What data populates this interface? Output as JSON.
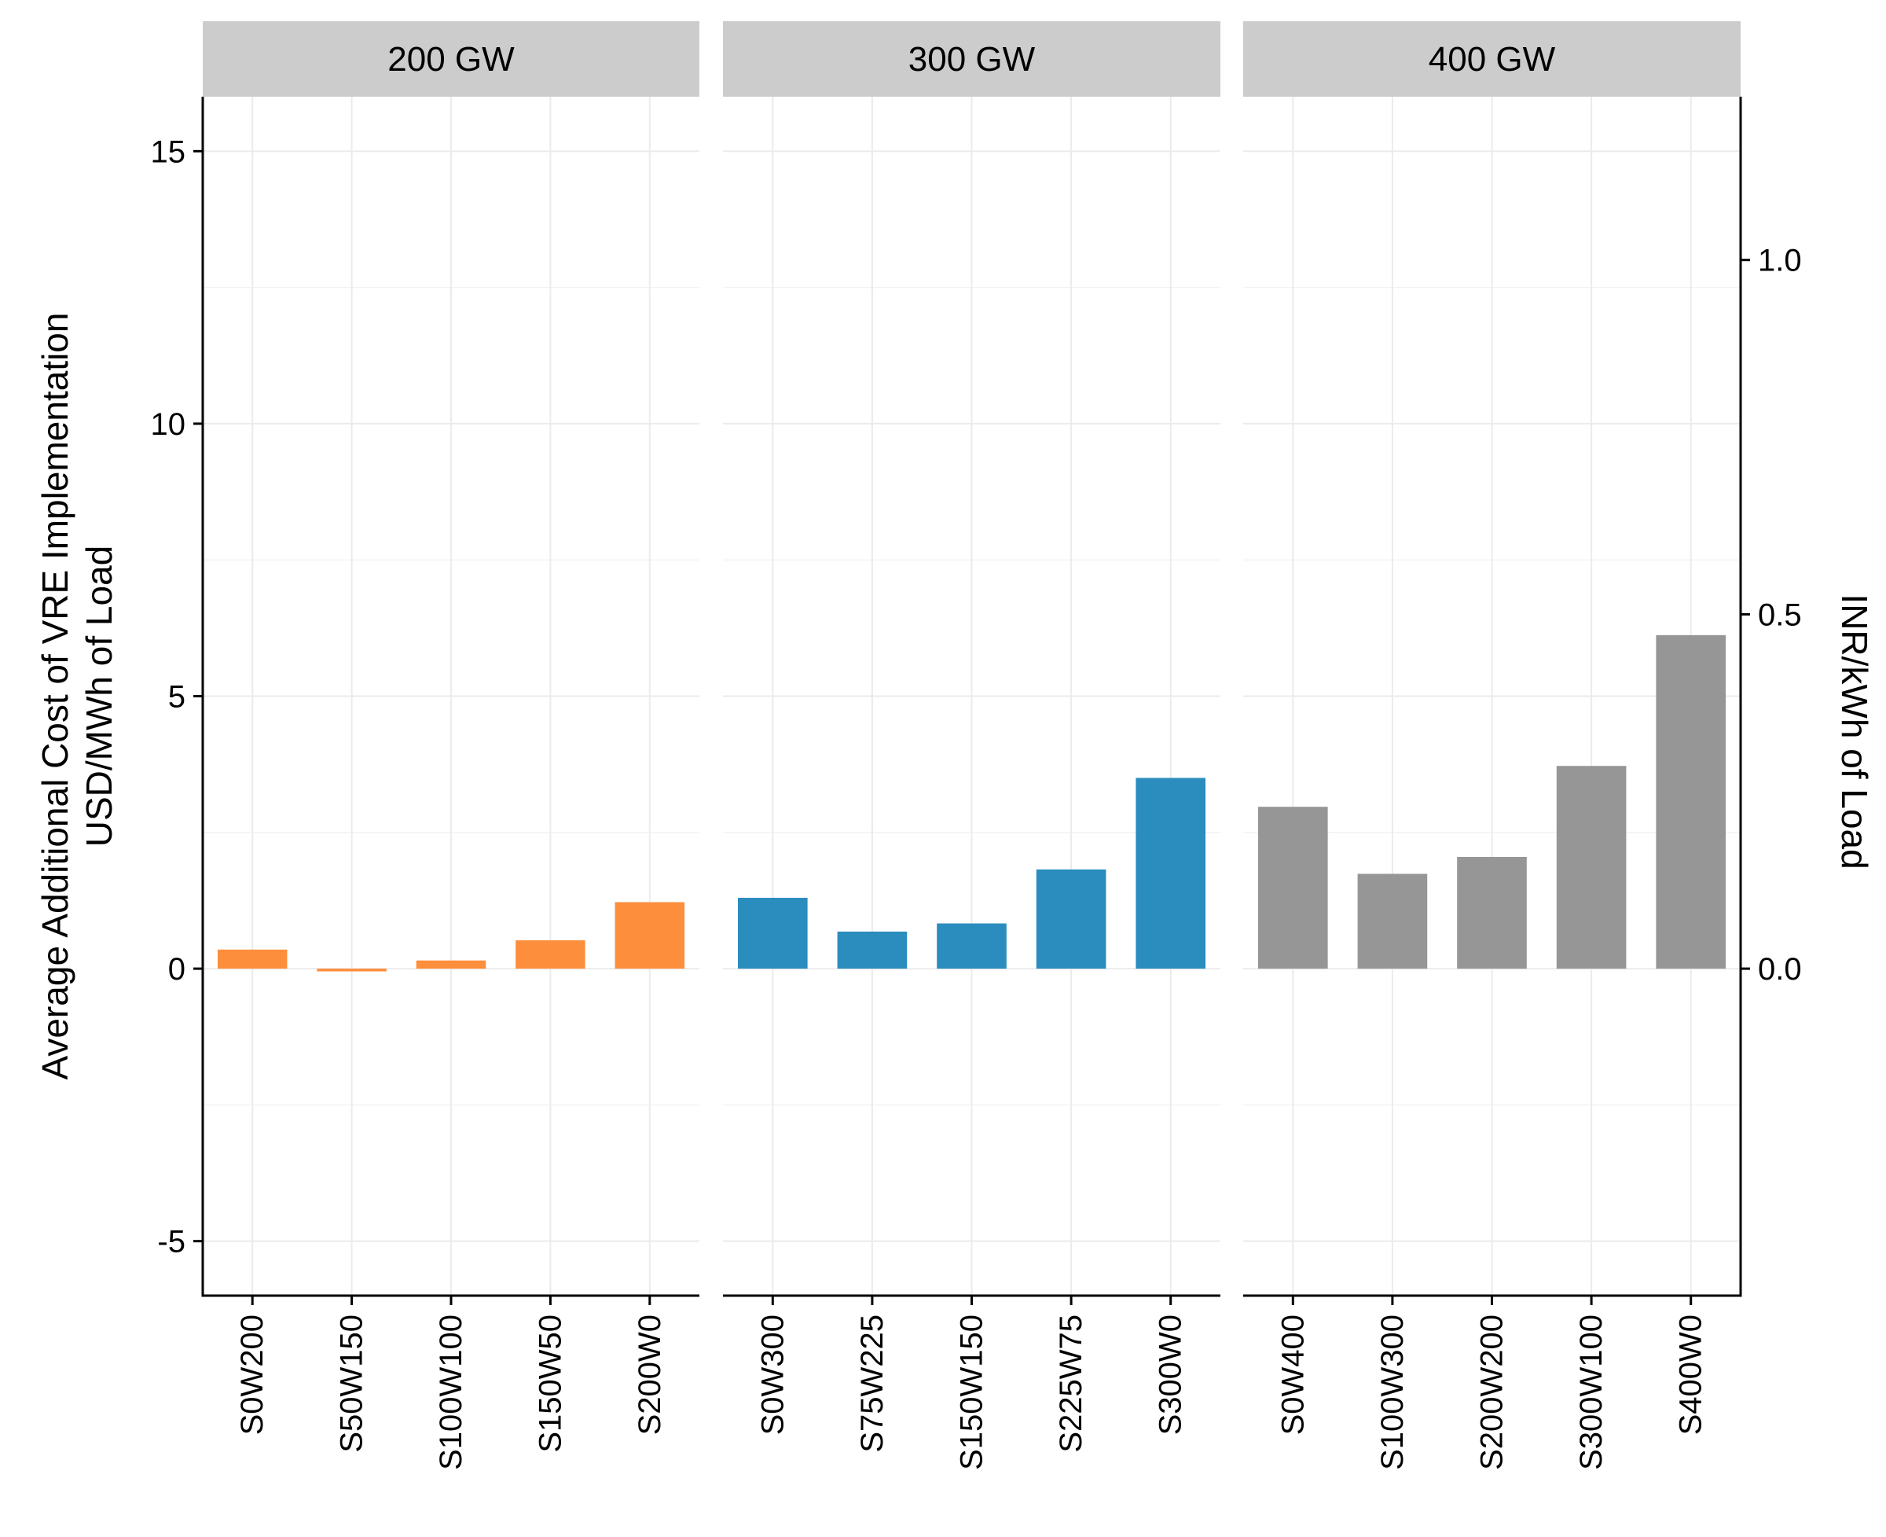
{
  "chart_data": {
    "type": "bar",
    "ylabel_lines": [
      "Average Additional Cost of VRE Implementation",
      "USD/MWh of Load"
    ],
    "ylabel_right": "INR/kWh of Load",
    "ylim": [
      -6,
      16
    ],
    "yticks": [
      -5,
      0,
      5,
      10,
      15
    ],
    "ytick_labels": [
      "-5",
      "0",
      "5",
      "10",
      "15"
    ],
    "y2_ticks": [
      0.0,
      0.5,
      1.0
    ],
    "y2_tick_labels": [
      "0.0",
      "0.5",
      "1.0"
    ],
    "y2_per_y1": 0.0769,
    "grid": true,
    "panels": [
      {
        "name": "200 GW",
        "color": "#FD8E3C",
        "categories": [
          "S0W200",
          "S50W150",
          "S100W100",
          "S150W50",
          "S200W0"
        ],
        "values": [
          0.35,
          -0.05,
          0.15,
          0.52,
          1.22
        ]
      },
      {
        "name": "300 GW",
        "color": "#2B8CBE",
        "categories": [
          "S0W300",
          "S75W225",
          "S150W150",
          "S225W75",
          "S300W0"
        ],
        "values": [
          1.3,
          0.68,
          0.83,
          1.82,
          3.5
        ]
      },
      {
        "name": "400 GW",
        "color": "#969696",
        "categories": [
          "S0W400",
          "S100W300",
          "S200W200",
          "S300W100",
          "S400W0"
        ],
        "values": [
          2.97,
          1.74,
          2.05,
          3.72,
          6.12
        ]
      }
    ]
  }
}
